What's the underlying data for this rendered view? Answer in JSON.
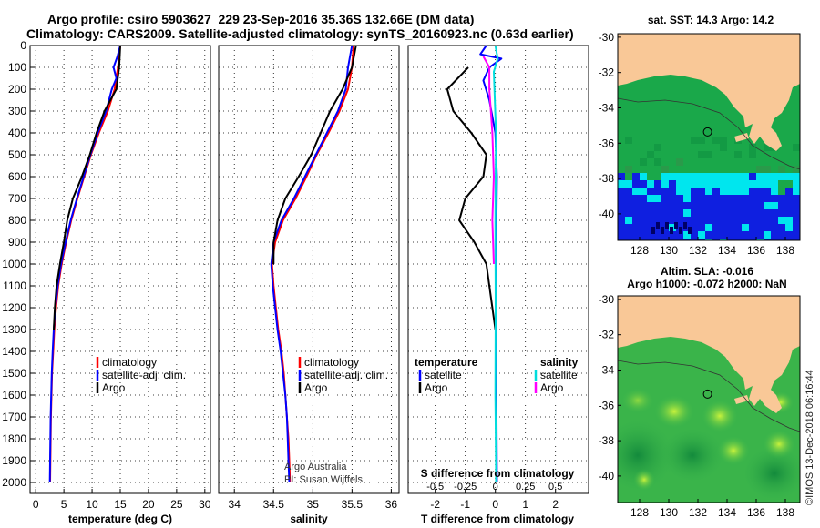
{
  "figure": {
    "title_line1": "Argo profile: csiro 5903627_229 23-Sep-2016 35.36S 132.66E (DM data)",
    "title_line2": "Climatology: CARS2009. Satellite-adjusted climatology: synTS_20160923.nc (0.63d earlier)",
    "credit": "Argo Australia",
    "pi": "PI: Susan Wijffels",
    "stamp": "©IMOS 13-Dec-2018 06:16:44"
  },
  "colors": {
    "climatology": "#ff0000",
    "satellite": "#0000ff",
    "argo": "#000000",
    "s_satellite": "#00dddd",
    "s_argo": "#ff00ff",
    "land": "#f9c897",
    "map_green": "#1aa84a"
  },
  "chart_data": [
    {
      "type": "line",
      "xlabel": "temperature (deg C)",
      "ylabel": "",
      "xlim": [
        -1,
        31
      ],
      "ylim": [
        2050,
        0
      ],
      "x_ticks": [
        "0",
        "5",
        "10",
        "15",
        "20",
        "25",
        "30"
      ],
      "y_ticks": [
        "0",
        "100",
        "200",
        "300",
        "400",
        "500",
        "600",
        "700",
        "800",
        "900",
        "1000",
        "1100",
        "1200",
        "1300",
        "1400",
        "1500",
        "1600",
        "1700",
        "1800",
        "1900",
        "2000"
      ],
      "legend": [
        "climatology",
        "satellite-adj. clim.",
        "Argo"
      ],
      "legend_placement": "lower-right",
      "series": [
        {
          "name": "climatology",
          "color": "#ff0000",
          "points": [
            [
              15.0,
              0
            ],
            [
              14.6,
              100
            ],
            [
              14.0,
              200
            ],
            [
              12.8,
              300
            ],
            [
              11.2,
              400
            ],
            [
              9.8,
              500
            ],
            [
              8.6,
              600
            ],
            [
              7.4,
              700
            ],
            [
              6.3,
              800
            ],
            [
              5.4,
              900
            ],
            [
              4.6,
              1000
            ],
            [
              4.0,
              1100
            ],
            [
              3.6,
              1200
            ],
            [
              3.3,
              1300
            ],
            [
              3.1,
              1400
            ],
            [
              2.9,
              1500
            ],
            [
              2.8,
              1600
            ],
            [
              2.7,
              1700
            ],
            [
              2.65,
              1800
            ],
            [
              2.6,
              1900
            ],
            [
              2.55,
              2000
            ]
          ]
        },
        {
          "name": "satellite-adj. clim.",
          "color": "#0000ff",
          "points": [
            [
              15.0,
              0
            ],
            [
              14.5,
              50
            ],
            [
              13.8,
              100
            ],
            [
              14.3,
              150
            ],
            [
              13.5,
              200
            ],
            [
              12.5,
              300
            ],
            [
              11.0,
              400
            ],
            [
              9.7,
              500
            ],
            [
              8.5,
              600
            ],
            [
              7.3,
              700
            ],
            [
              6.2,
              800
            ],
            [
              5.3,
              900
            ],
            [
              4.5,
              1000
            ],
            [
              3.9,
              1100
            ],
            [
              3.5,
              1200
            ],
            [
              3.2,
              1300
            ],
            [
              3.0,
              1400
            ],
            [
              2.85,
              1500
            ],
            [
              2.75,
              1600
            ],
            [
              2.65,
              1700
            ],
            [
              2.6,
              1800
            ],
            [
              2.55,
              1900
            ],
            [
              2.5,
              2000
            ]
          ]
        },
        {
          "name": "Argo",
          "color": "#000000",
          "points": [
            [
              15.0,
              0
            ],
            [
              14.8,
              100
            ],
            [
              14.3,
              200
            ],
            [
              12.2,
              300
            ],
            [
              10.8,
              400
            ],
            [
              9.6,
              500
            ],
            [
              8.2,
              600
            ],
            [
              6.6,
              700
            ],
            [
              5.6,
              800
            ],
            [
              5.0,
              900
            ],
            [
              4.3,
              1000
            ],
            [
              3.7,
              1100
            ],
            [
              3.4,
              1200
            ],
            [
              3.2,
              1300
            ]
          ]
        }
      ]
    },
    {
      "type": "line",
      "xlabel": "salinity",
      "xlim": [
        33.8,
        36.1
      ],
      "ylim": [
        2050,
        0
      ],
      "x_ticks": [
        "34",
        "34.5",
        "35",
        "35.5",
        "36"
      ],
      "legend": [
        "climatology",
        "satellite-adj. clim.",
        "Argo"
      ],
      "legend_placement": "lower-right",
      "series": [
        {
          "name": "climatology",
          "color": "#ff0000",
          "points": [
            [
              35.52,
              0
            ],
            [
              35.5,
              100
            ],
            [
              35.45,
              200
            ],
            [
              35.34,
              300
            ],
            [
              35.2,
              400
            ],
            [
              35.05,
              500
            ],
            [
              34.92,
              600
            ],
            [
              34.78,
              700
            ],
            [
              34.62,
              800
            ],
            [
              34.52,
              900
            ],
            [
              34.48,
              1000
            ],
            [
              34.5,
              1100
            ],
            [
              34.53,
              1200
            ],
            [
              34.56,
              1300
            ],
            [
              34.6,
              1400
            ],
            [
              34.63,
              1500
            ],
            [
              34.65,
              1600
            ],
            [
              34.67,
              1700
            ],
            [
              34.69,
              1800
            ],
            [
              34.7,
              1900
            ],
            [
              34.71,
              2000
            ]
          ]
        },
        {
          "name": "satellite-adj. clim.",
          "color": "#0000ff",
          "points": [
            [
              35.5,
              0
            ],
            [
              35.45,
              100
            ],
            [
              35.42,
              200
            ],
            [
              35.32,
              300
            ],
            [
              35.18,
              400
            ],
            [
              35.04,
              500
            ],
            [
              34.9,
              600
            ],
            [
              34.76,
              700
            ],
            [
              34.6,
              800
            ],
            [
              34.5,
              900
            ],
            [
              34.47,
              1000
            ],
            [
              34.49,
              1100
            ],
            [
              34.52,
              1200
            ],
            [
              34.55,
              1300
            ],
            [
              34.59,
              1400
            ],
            [
              34.62,
              1500
            ],
            [
              34.65,
              1600
            ],
            [
              34.67,
              1700
            ],
            [
              34.68,
              1800
            ],
            [
              34.69,
              1900
            ],
            [
              34.7,
              2000
            ]
          ]
        },
        {
          "name": "Argo",
          "color": "#000000",
          "points": [
            [
              35.55,
              0
            ],
            [
              35.5,
              100
            ],
            [
              35.38,
              200
            ],
            [
              35.22,
              300
            ],
            [
              35.1,
              400
            ],
            [
              34.98,
              500
            ],
            [
              34.82,
              600
            ],
            [
              34.65,
              700
            ],
            [
              34.55,
              800
            ],
            [
              34.5,
              900
            ],
            [
              34.5,
              1000
            ]
          ]
        }
      ]
    },
    {
      "type": "line",
      "xlabel": "T difference from climatology",
      "xlabel_top": "S difference from climatology",
      "xlim": [
        -2.9,
        3.1
      ],
      "ylim": [
        2050,
        0
      ],
      "x_ticks": [
        "-2",
        "-1",
        "0",
        "1",
        "2"
      ],
      "x_ticks_top": [
        "-0.5",
        "-0.25",
        "0",
        "0.25",
        "0.5"
      ],
      "legend_left": {
        "header": "temperature",
        "items": [
          "satellite",
          "Argo"
        ]
      },
      "legend_right": {
        "header": "salinity",
        "items": [
          "satellite",
          "Argo"
        ]
      },
      "series": [
        {
          "name": "satellite",
          "color": "#0000ff",
          "points": [
            [
              -0.3,
              0
            ],
            [
              -0.5,
              40
            ],
            [
              0.2,
              60
            ],
            [
              -0.2,
              100
            ],
            [
              -0.4,
              160
            ],
            [
              -0.2,
              250
            ],
            [
              0,
              400
            ],
            [
              0.05,
              600
            ],
            [
              0.02,
              1000
            ],
            [
              0.03,
              1500
            ],
            [
              0.05,
              2000
            ]
          ]
        },
        {
          "name": "Argo",
          "color": "#000000",
          "points": [
            [
              -0.9,
              100
            ],
            [
              -1.6,
              200
            ],
            [
              -1.4,
              300
            ],
            [
              -0.8,
              400
            ],
            [
              -0.3,
              500
            ],
            [
              -0.4,
              600
            ],
            [
              -1.0,
              700
            ],
            [
              -1.2,
              800
            ],
            [
              -0.7,
              900
            ],
            [
              -0.3,
              1000
            ],
            [
              -0.1,
              1200
            ],
            [
              0,
              1300
            ]
          ]
        },
        {
          "name": "S satellite",
          "color": "#00dddd",
          "points": [
            [
              0,
              0
            ],
            [
              0.08,
              60
            ],
            [
              -0.05,
              120
            ],
            [
              0.02,
              400
            ],
            [
              0,
              800
            ],
            [
              0.01,
              1200
            ],
            [
              0,
              1600
            ],
            [
              0.02,
              1900
            ],
            [
              0.02,
              2000
            ]
          ]
        },
        {
          "name": "S Argo",
          "color": "#ff00ff",
          "points": [
            [
              -0.4,
              50
            ],
            [
              -0.2,
              100
            ],
            [
              -0.2,
              200
            ],
            [
              -0.1,
              400
            ],
            [
              -0.05,
              600
            ],
            [
              -0.1,
              800
            ],
            [
              -0.05,
              1000
            ]
          ]
        }
      ]
    },
    {
      "type": "heatmap",
      "title": "sat. SST: 14.3 Argo: 14.2",
      "xlim": [
        126.5,
        139
      ],
      "ylim": [
        -41.5,
        -29.8
      ],
      "x_ticks": [
        "128",
        "130",
        "132",
        "134",
        "136",
        "138"
      ],
      "y_ticks": [
        "-30",
        "-32",
        "-34",
        "-36",
        "-38",
        "-40"
      ],
      "marker": {
        "lon": 132.66,
        "lat": -35.36
      }
    },
    {
      "type": "heatmap",
      "title": "Altim. SLA: -0.016",
      "subtitle": "Argo h1000: -0.072 h2000: NaN",
      "xlim": [
        126.5,
        139
      ],
      "ylim": [
        -41.5,
        -29.8
      ],
      "x_ticks": [
        "128",
        "130",
        "132",
        "134",
        "136",
        "138"
      ],
      "y_ticks": [
        "-30",
        "-32",
        "-34",
        "-36",
        "-38",
        "-40"
      ],
      "marker": {
        "lon": 132.66,
        "lat": -35.36
      }
    }
  ]
}
